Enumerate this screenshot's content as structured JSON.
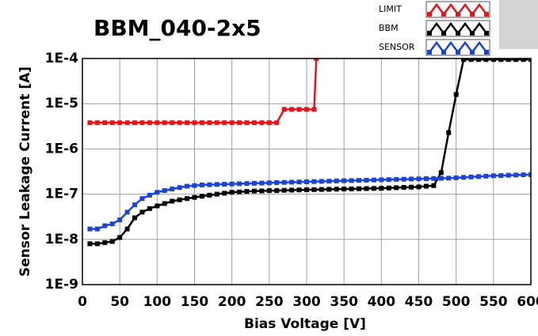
{
  "chart_data": {
    "type": "line",
    "title": "BBM_040-2x5",
    "x_label": "Bias Voltage [V]",
    "y_label": "Sensor Leakage Current [A]",
    "log_y": true,
    "grid": true,
    "xlim": [
      0,
      600
    ],
    "xticks": [
      0,
      50,
      100,
      150,
      200,
      250,
      300,
      350,
      400,
      450,
      500,
      550,
      600
    ],
    "ylim": [
      1e-09,
      0.0001
    ],
    "yticks": [
      {
        "value": 1e-09,
        "label": "1E-9"
      },
      {
        "value": 1e-08,
        "label": "1E-8"
      },
      {
        "value": 1e-07,
        "label": "1E-7"
      },
      {
        "value": 1e-06,
        "label": "1E-6"
      },
      {
        "value": 1e-05,
        "label": "1E-5"
      },
      {
        "value": 0.0001,
        "label": "1E-4"
      }
    ],
    "series": [
      {
        "name": "LIMIT",
        "color": "#e8141c",
        "x": [
          10,
          20,
          30,
          40,
          50,
          60,
          70,
          80,
          90,
          100,
          110,
          120,
          130,
          140,
          150,
          160,
          170,
          180,
          190,
          200,
          210,
          220,
          230,
          240,
          250,
          260,
          270,
          280,
          290,
          300,
          310,
          313
        ],
        "values": [
          3.8e-06,
          3.8e-06,
          3.8e-06,
          3.8e-06,
          3.8e-06,
          3.8e-06,
          3.8e-06,
          3.8e-06,
          3.8e-06,
          3.8e-06,
          3.8e-06,
          3.8e-06,
          3.8e-06,
          3.8e-06,
          3.8e-06,
          3.8e-06,
          3.8e-06,
          3.8e-06,
          3.8e-06,
          3.8e-06,
          3.8e-06,
          3.8e-06,
          3.8e-06,
          3.8e-06,
          3.8e-06,
          3.8e-06,
          7.5e-06,
          7.5e-06,
          7.5e-06,
          7.5e-06,
          7.5e-06,
          0.0001
        ]
      },
      {
        "name": "BBM",
        "color": "#000000",
        "x": [
          10,
          20,
          30,
          40,
          50,
          60,
          70,
          80,
          90,
          100,
          110,
          120,
          130,
          140,
          150,
          160,
          170,
          180,
          190,
          200,
          210,
          220,
          230,
          240,
          250,
          260,
          270,
          280,
          290,
          300,
          310,
          320,
          330,
          340,
          350,
          360,
          370,
          380,
          390,
          400,
          410,
          420,
          430,
          440,
          450,
          460,
          470,
          480,
          490,
          500,
          510,
          520,
          530,
          540,
          550,
          560,
          570,
          580,
          590,
          600
        ],
        "values": [
          8e-09,
          8e-09,
          8.5e-09,
          9e-09,
          1.1e-08,
          1.7e-08,
          3e-08,
          4e-08,
          4.8e-08,
          5.5e-08,
          6.2e-08,
          7e-08,
          7.5e-08,
          8e-08,
          8.5e-08,
          9e-08,
          9.5e-08,
          1e-07,
          1.05e-07,
          1.1e-07,
          1.12e-07,
          1.15e-07,
          1.17e-07,
          1.18e-07,
          1.2e-07,
          1.2e-07,
          1.22e-07,
          1.23e-07,
          1.24e-07,
          1.25e-07,
          1.26e-07,
          1.27e-07,
          1.28e-07,
          1.29e-07,
          1.3e-07,
          1.31e-07,
          1.32e-07,
          1.33e-07,
          1.34e-07,
          1.35e-07,
          1.37e-07,
          1.39e-07,
          1.41e-07,
          1.43e-07,
          1.45e-07,
          1.5e-07,
          1.55e-07,
          3e-07,
          2.3e-06,
          1.6e-05,
          9.5e-05,
          9.5e-05,
          9.5e-05,
          9.5e-05,
          9.5e-05,
          9.5e-05,
          9.5e-05,
          9.5e-05,
          9.5e-05,
          9.5e-05
        ]
      },
      {
        "name": "SENSOR",
        "color": "#1a44d8",
        "x": [
          10,
          20,
          30,
          40,
          50,
          60,
          70,
          80,
          90,
          100,
          110,
          120,
          130,
          140,
          150,
          160,
          170,
          180,
          190,
          200,
          210,
          220,
          230,
          240,
          250,
          260,
          270,
          280,
          290,
          300,
          310,
          320,
          330,
          340,
          350,
          360,
          370,
          380,
          390,
          400,
          410,
          420,
          430,
          440,
          450,
          460,
          470,
          480,
          490,
          500,
          510,
          520,
          530,
          540,
          550,
          560,
          570,
          580,
          590,
          600
        ],
        "values": [
          1.7e-08,
          1.7e-08,
          2e-08,
          2.2e-08,
          2.7e-08,
          4e-08,
          5.8e-08,
          8e-08,
          9.5e-08,
          1.1e-07,
          1.2e-07,
          1.3e-07,
          1.4e-07,
          1.5e-07,
          1.55e-07,
          1.6e-07,
          1.62e-07,
          1.64e-07,
          1.66e-07,
          1.68e-07,
          1.7e-07,
          1.72e-07,
          1.74e-07,
          1.76e-07,
          1.78e-07,
          1.8e-07,
          1.82e-07,
          1.84e-07,
          1.86e-07,
          1.88e-07,
          1.9e-07,
          1.92e-07,
          1.94e-07,
          1.96e-07,
          1.98e-07,
          2e-07,
          2.02e-07,
          2.04e-07,
          2.06e-07,
          2.08e-07,
          2.1e-07,
          2.12e-07,
          2.14e-07,
          2.16e-07,
          2.18e-07,
          2.2e-07,
          2.22e-07,
          2.24e-07,
          2.26e-07,
          2.3e-07,
          2.35e-07,
          2.4e-07,
          2.45e-07,
          2.5e-07,
          2.55e-07,
          2.58e-07,
          2.62e-07,
          2.65e-07,
          2.68e-07,
          2.7e-07
        ]
      }
    ]
  }
}
